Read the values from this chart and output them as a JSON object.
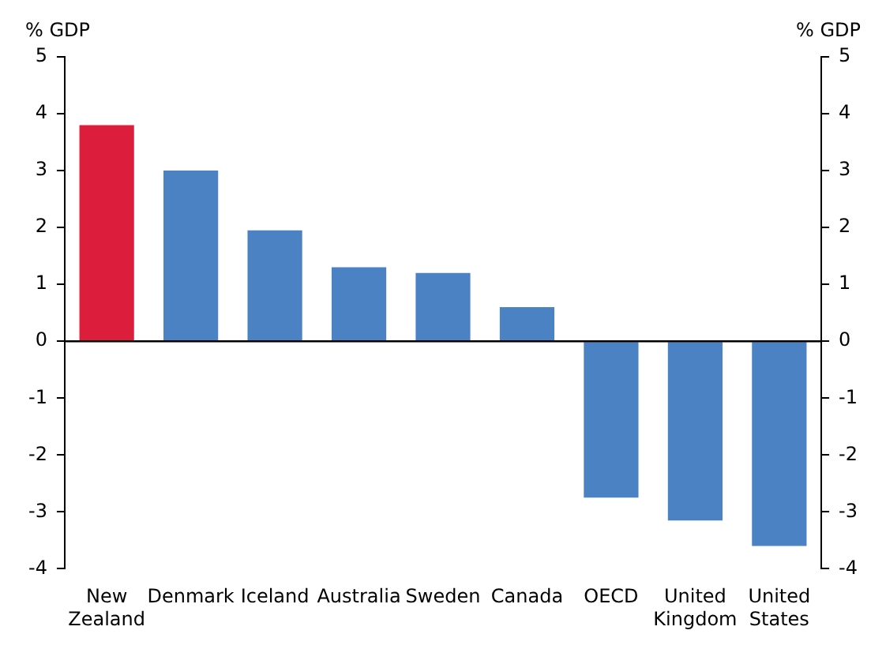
{
  "chart_data": {
    "type": "bar",
    "ylabel": "% GDP",
    "y2label": "% GDP",
    "categories": [
      "New Zealand",
      "Denmark",
      "Iceland",
      "Australia",
      "Sweden",
      "Canada",
      "OECD",
      "United Kingdom",
      "United States"
    ],
    "values": [
      3.8,
      3.0,
      1.95,
      1.3,
      1.2,
      0.6,
      -2.75,
      -3.15,
      -3.6
    ],
    "colors": [
      "#dc1e3c",
      "#4a82c4",
      "#4a82c4",
      "#4a82c4",
      "#4a82c4",
      "#4a82c4",
      "#4a82c4",
      "#4a82c4",
      "#4a82c4"
    ],
    "ylim": [
      -4,
      5
    ],
    "yticks": [
      -4,
      -3,
      -2,
      -1,
      0,
      1,
      2,
      3,
      4,
      5
    ],
    "y2lim": [
      -4,
      5
    ],
    "y2ticks": [
      -4,
      -3,
      -2,
      -1,
      0,
      1,
      2,
      3,
      4,
      5
    ],
    "ref_lines": [
      {
        "axis": "y",
        "value": 0,
        "color": "#000000"
      }
    ],
    "grid": false,
    "legend": false
  }
}
